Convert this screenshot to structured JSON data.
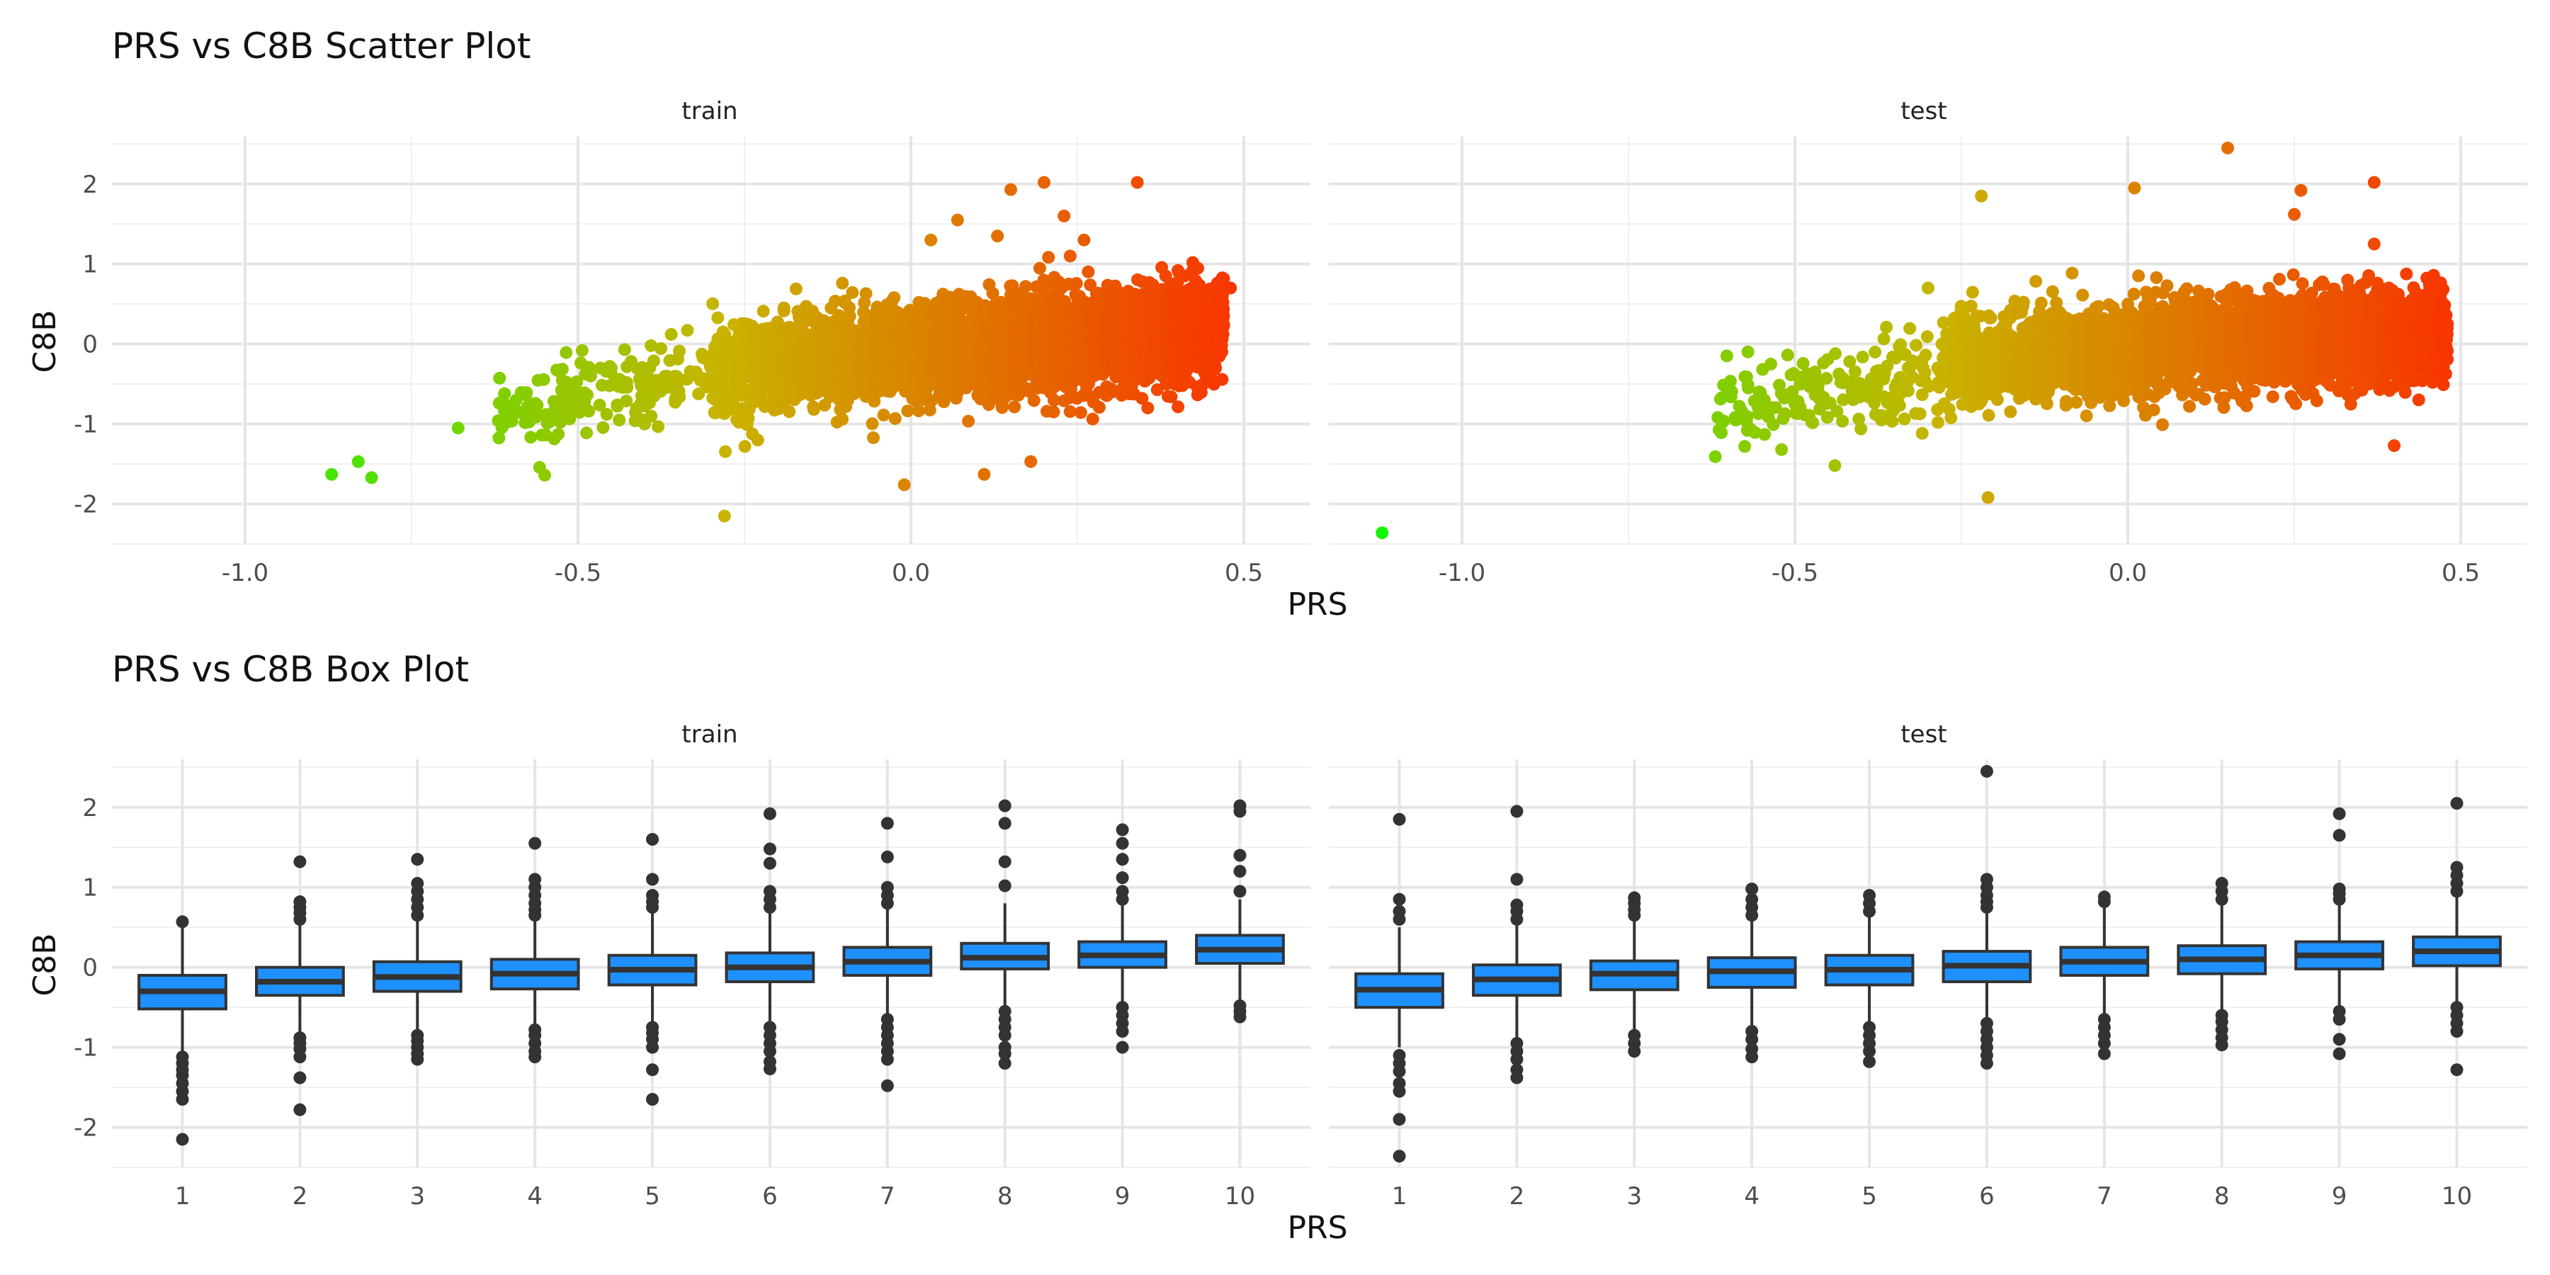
{
  "chart_data": [
    {
      "type": "scatter",
      "title": "PRS vs C8B Scatter Plot",
      "xlabel": "PRS",
      "ylabel": "C8B",
      "xlim": [
        -1.2,
        0.6
      ],
      "ylim": [
        -2.5,
        2.6
      ],
      "x_ticks": [
        -1.0,
        -0.5,
        0.0,
        0.5
      ],
      "x_tick_labels": [
        "-1.0",
        "-0.5",
        "0.0",
        "0.5"
      ],
      "y_ticks": [
        -2,
        -1,
        0,
        1,
        2
      ],
      "y_tick_labels": [
        "-2",
        "-1",
        "0",
        "1",
        "2"
      ],
      "grid": true,
      "legend": "none",
      "color_scale": {
        "low": "#00ff00",
        "mid": "#c8b400",
        "high": "#ff2200"
      },
      "panels": [
        {
          "name": "train",
          "cloud": {
            "x_range": [
              -0.3,
              0.47
            ],
            "slope": 1.3,
            "intercept": -0.12,
            "spread": 0.3
          },
          "points": [
            {
              "x": -0.87,
              "y": -1.63
            },
            {
              "x": -0.83,
              "y": -1.47
            },
            {
              "x": -0.81,
              "y": -1.67
            },
            {
              "x": -0.68,
              "y": -1.05
            },
            {
              "x": -0.55,
              "y": -1.64
            },
            {
              "x": -0.28,
              "y": -2.15
            },
            {
              "x": -0.01,
              "y": -1.76
            },
            {
              "x": 0.11,
              "y": -1.63
            },
            {
              "x": 0.18,
              "y": -1.47
            },
            {
              "x": 0.2,
              "y": 2.02
            },
            {
              "x": 0.34,
              "y": 2.02
            },
            {
              "x": 0.15,
              "y": 1.93
            },
            {
              "x": 0.23,
              "y": 1.6
            },
            {
              "x": 0.07,
              "y": 1.55
            },
            {
              "x": 0.03,
              "y": 1.3
            },
            {
              "x": 0.13,
              "y": 1.35
            },
            {
              "x": 0.26,
              "y": 1.3
            },
            {
              "x": 0.48,
              "y": 0.7
            },
            {
              "x": 0.46,
              "y": 0.27
            },
            {
              "x": -0.6,
              "y": -0.8
            },
            {
              "x": -0.5,
              "y": -0.6
            },
            {
              "x": -0.45,
              "y": -0.3
            },
            {
              "x": -0.4,
              "y": -1.0
            },
            {
              "x": -0.36,
              "y": 0.12
            },
            {
              "x": -0.23,
              "y": -1.2
            },
            {
              "x": -0.12,
              "y": 0.45
            }
          ]
        },
        {
          "name": "test",
          "cloud": {
            "x_range": [
              -0.28,
              0.48
            ],
            "slope": 0.9,
            "intercept": -0.08,
            "spread": 0.28
          },
          "points": [
            {
              "x": -1.12,
              "y": -2.36
            },
            {
              "x": -0.6,
              "y": -0.58
            },
            {
              "x": -0.59,
              "y": -0.92
            },
            {
              "x": -0.57,
              "y": -0.55
            },
            {
              "x": -0.52,
              "y": -1.32
            },
            {
              "x": -0.5,
              "y": -0.75
            },
            {
              "x": -0.44,
              "y": -1.52
            },
            {
              "x": -0.21,
              "y": -1.92
            },
            {
              "x": -0.22,
              "y": 1.85
            },
            {
              "x": 0.01,
              "y": 1.95
            },
            {
              "x": 0.15,
              "y": 2.45
            },
            {
              "x": 0.26,
              "y": 1.92
            },
            {
              "x": 0.37,
              "y": 2.02
            },
            {
              "x": 0.4,
              "y": -1.27
            },
            {
              "x": 0.25,
              "y": 1.62
            },
            {
              "x": 0.37,
              "y": 1.25
            },
            {
              "x": 0.48,
              "y": 0.25
            },
            {
              "x": -0.47,
              "y": -0.35
            },
            {
              "x": -0.37,
              "y": -0.95
            },
            {
              "x": -0.33,
              "y": -0.3
            },
            {
              "x": -0.3,
              "y": 0.7
            }
          ]
        }
      ]
    },
    {
      "type": "box",
      "title": "PRS vs C8B Box Plot",
      "xlabel": "PRS",
      "ylabel": "C8B",
      "categories": [
        "1",
        "2",
        "3",
        "4",
        "5",
        "6",
        "7",
        "8",
        "9",
        "10"
      ],
      "ylim": [
        -2.5,
        2.6
      ],
      "y_ticks": [
        -2,
        -1,
        0,
        1,
        2
      ],
      "y_tick_labels": [
        "-2",
        "-1",
        "0",
        "1",
        "2"
      ],
      "grid": true,
      "legend": "none",
      "box_fill": "#1e90ff",
      "box_line": "#333333",
      "panels": [
        {
          "name": "train",
          "boxes": [
            {
              "q1": -0.52,
              "median": -0.3,
              "q3": -0.1,
              "lower": -1.05,
              "upper": 0.55,
              "outliers": [
                -1.12,
                -1.2,
                -1.28,
                -1.35,
                -1.45,
                -1.55,
                -1.65,
                -2.15,
                0.57
              ]
            },
            {
              "q1": -0.35,
              "median": -0.18,
              "q3": 0.0,
              "lower": -0.85,
              "upper": 0.55,
              "outliers": [
                -0.88,
                -0.95,
                -1.02,
                -1.12,
                -1.38,
                -1.78,
                0.6,
                0.68,
                0.75,
                0.82,
                1.32
              ]
            },
            {
              "q1": -0.3,
              "median": -0.12,
              "q3": 0.07,
              "lower": -0.82,
              "upper": 0.6,
              "outliers": [
                -0.85,
                -0.92,
                -1.0,
                -1.08,
                -1.15,
                0.65,
                0.75,
                0.85,
                0.95,
                1.05,
                1.35
              ]
            },
            {
              "q1": -0.27,
              "median": -0.08,
              "q3": 0.1,
              "lower": -0.75,
              "upper": 0.6,
              "outliers": [
                -0.78,
                -0.85,
                -0.95,
                -1.05,
                -1.12,
                0.65,
                0.72,
                0.8,
                0.9,
                1.0,
                1.1,
                1.55
              ]
            },
            {
              "q1": -0.22,
              "median": -0.03,
              "q3": 0.15,
              "lower": -0.7,
              "upper": 0.7,
              "outliers": [
                -0.75,
                -0.82,
                -0.9,
                -1.0,
                -1.28,
                -1.65,
                0.75,
                0.82,
                0.9,
                1.1,
                1.6
              ]
            },
            {
              "q1": -0.18,
              "median": 0.0,
              "q3": 0.18,
              "lower": -0.7,
              "upper": 0.7,
              "outliers": [
                -0.75,
                -0.85,
                -0.95,
                -1.05,
                -1.18,
                -1.27,
                0.75,
                0.85,
                0.95,
                1.3,
                1.48,
                1.92
              ]
            },
            {
              "q1": -0.1,
              "median": 0.07,
              "q3": 0.25,
              "lower": -0.6,
              "upper": 0.75,
              "outliers": [
                -0.65,
                -0.75,
                -0.85,
                -0.95,
                -1.05,
                -1.15,
                -1.48,
                0.8,
                0.9,
                1.0,
                1.38,
                1.8
              ]
            },
            {
              "q1": -0.02,
              "median": 0.12,
              "q3": 0.3,
              "lower": -0.5,
              "upper": 0.8,
              "outliers": [
                -0.55,
                -0.65,
                -0.75,
                -0.85,
                -1.0,
                -1.08,
                -1.2,
                1.02,
                1.32,
                1.8,
                2.02
              ]
            },
            {
              "q1": 0.0,
              "median": 0.15,
              "q3": 0.32,
              "lower": -0.45,
              "upper": 0.8,
              "outliers": [
                -0.5,
                -0.6,
                -0.7,
                -0.8,
                -1.0,
                0.85,
                0.95,
                1.12,
                1.35,
                1.55,
                1.72
              ]
            },
            {
              "q1": 0.05,
              "median": 0.22,
              "q3": 0.4,
              "lower": -0.4,
              "upper": 0.85,
              "outliers": [
                -0.48,
                -0.55,
                -0.62,
                0.95,
                1.2,
                1.4,
                1.95,
                2.02
              ]
            }
          ]
        },
        {
          "name": "test",
          "boxes": [
            {
              "q1": -0.5,
              "median": -0.28,
              "q3": -0.08,
              "lower": -1.0,
              "upper": 0.5,
              "outliers": [
                -1.1,
                -1.2,
                -1.3,
                -1.45,
                -1.55,
                -1.9,
                -2.36,
                0.6,
                0.7,
                0.85,
                1.85
              ]
            },
            {
              "q1": -0.35,
              "median": -0.15,
              "q3": 0.03,
              "lower": -0.9,
              "upper": 0.55,
              "outliers": [
                -0.95,
                -1.05,
                -1.15,
                -1.28,
                -1.38,
                0.6,
                0.7,
                0.78,
                1.1,
                1.95
              ]
            },
            {
              "q1": -0.28,
              "median": -0.08,
              "q3": 0.08,
              "lower": -0.8,
              "upper": 0.6,
              "outliers": [
                -0.85,
                -0.95,
                -1.05,
                0.65,
                0.72,
                0.8,
                0.87
              ]
            },
            {
              "q1": -0.25,
              "median": -0.05,
              "q3": 0.12,
              "lower": -0.75,
              "upper": 0.6,
              "outliers": [
                -0.8,
                -0.9,
                -1.02,
                -1.12,
                0.65,
                0.75,
                0.85,
                0.98
              ]
            },
            {
              "q1": -0.22,
              "median": -0.03,
              "q3": 0.15,
              "lower": -0.7,
              "upper": 0.65,
              "outliers": [
                -0.75,
                -0.85,
                -0.95,
                -1.05,
                -1.18,
                0.7,
                0.8,
                0.9
              ]
            },
            {
              "q1": -0.18,
              "median": 0.02,
              "q3": 0.2,
              "lower": -0.65,
              "upper": 0.7,
              "outliers": [
                -0.7,
                -0.8,
                -0.9,
                -1.0,
                -1.1,
                -1.2,
                0.75,
                0.82,
                0.9,
                1.0,
                1.1,
                2.45
              ]
            },
            {
              "q1": -0.1,
              "median": 0.07,
              "q3": 0.25,
              "lower": -0.6,
              "upper": 0.75,
              "outliers": [
                -0.65,
                -0.75,
                -0.85,
                -0.95,
                -1.08,
                0.82,
                0.88
              ]
            },
            {
              "q1": -0.08,
              "median": 0.1,
              "q3": 0.27,
              "lower": -0.55,
              "upper": 0.78,
              "outliers": [
                -0.6,
                -0.68,
                -0.78,
                -0.88,
                -0.97,
                0.85,
                0.95,
                1.05
              ]
            },
            {
              "q1": -0.02,
              "median": 0.15,
              "q3": 0.32,
              "lower": -0.5,
              "upper": 0.8,
              "outliers": [
                -0.55,
                -0.65,
                -0.9,
                -1.08,
                0.85,
                0.92,
                0.98,
                1.65,
                1.92
              ]
            },
            {
              "q1": 0.02,
              "median": 0.2,
              "q3": 0.38,
              "lower": -0.45,
              "upper": 0.9,
              "outliers": [
                -0.5,
                -0.6,
                -0.7,
                -0.8,
                -1.28,
                0.95,
                1.05,
                1.15,
                1.25,
                2.05
              ]
            }
          ]
        }
      ]
    }
  ]
}
